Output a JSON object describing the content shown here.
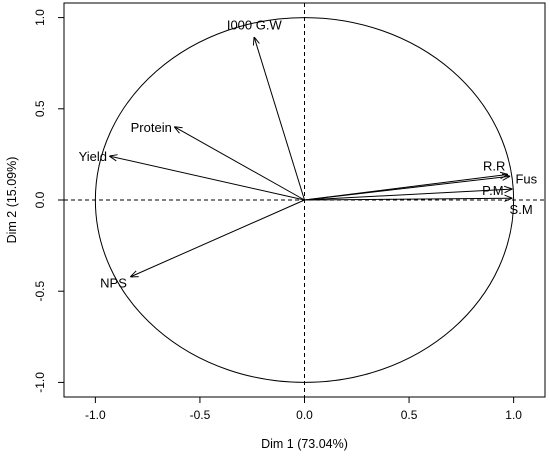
{
  "chart_data": {
    "type": "scatter",
    "subtype": "pca-correlation-circle",
    "title": "",
    "xlabel": "Dim 1 (73.04%)",
    "ylabel": "Dim 2 (15.09%)",
    "xlim": [
      -1.15,
      1.15
    ],
    "ylim": [
      -1.08,
      1.08
    ],
    "x_ticks": [
      -1.0,
      -0.5,
      0.0,
      0.5,
      1.0
    ],
    "x_tick_labels": [
      "-1.0",
      "-0.5",
      "0.0",
      "0.5",
      "1.0"
    ],
    "y_ticks": [
      -1.0,
      -0.5,
      0.0,
      0.5,
      1.0
    ],
    "y_tick_labels": [
      "-1.0",
      "-0.5",
      "0.0",
      "0.5",
      "1.0"
    ],
    "grid": false,
    "unit_circle": true,
    "reference_lines": "dashed at x=0 and y=0",
    "variables": [
      {
        "name": "I000 G.W",
        "x": -0.24,
        "y": 0.89
      },
      {
        "name": "Protein",
        "x": -0.62,
        "y": 0.4
      },
      {
        "name": "Yield",
        "x": -0.93,
        "y": 0.24
      },
      {
        "name": "NPS",
        "x": -0.83,
        "y": -0.42
      },
      {
        "name": "R.R",
        "x": 0.97,
        "y": 0.14
      },
      {
        "name": "Fus",
        "x": 0.98,
        "y": 0.13
      },
      {
        "name": "P.M",
        "x": 0.99,
        "y": 0.06
      },
      {
        "name": "S.M",
        "x": 0.99,
        "y": 0.01
      }
    ],
    "colors": {
      "line": "#000000",
      "background": "#ffffff"
    }
  }
}
